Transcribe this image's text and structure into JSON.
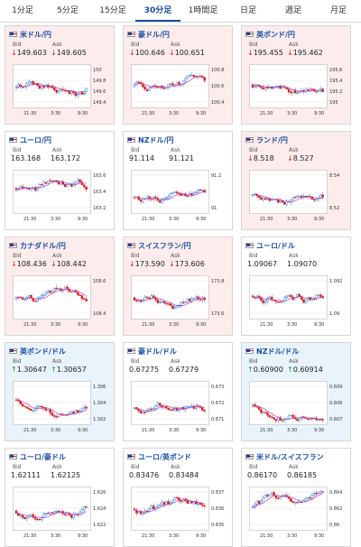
{
  "tabs": [
    "1分足",
    "5分足",
    "15分足",
    "30分足",
    "1時間足",
    "日足",
    "週足",
    "月足"
  ],
  "active_tab": 3,
  "labels": {
    "bid": "Bid",
    "ask": "Ask"
  },
  "colors": {
    "up": "#1a6fd0",
    "down": "#d02020",
    "ma": "#c040c0",
    "bid_up": "#1a9a3a",
    "bid_down": "#d02020"
  },
  "cards": [
    {
      "pair": "米ドル/円",
      "trend": "down",
      "bid": "149.603",
      "ask": "149.605",
      "arrow": "down",
      "yticks": [
        "150",
        "149.8",
        "149.6",
        "149.4"
      ],
      "xticks": [
        "21:30",
        "3:30",
        "9:30"
      ],
      "seed": 1
    },
    {
      "pair": "豪ドル/円",
      "trend": "down",
      "bid": "100.646",
      "ask": "100.651",
      "arrow": "down",
      "yticks": [
        "100.8",
        "100.6",
        "100.4"
      ],
      "xticks": [
        "21:30",
        "3:30",
        "9:30"
      ],
      "seed": 2
    },
    {
      "pair": "英ポンド/円",
      "trend": "down",
      "bid": "195.455",
      "ask": "195.462",
      "arrow": "down",
      "yticks": [
        "195.6",
        "195.4",
        "195.2",
        "195"
      ],
      "xticks": [
        "21:30",
        "3:30",
        "9:30"
      ],
      "seed": 3
    },
    {
      "pair": "ユーロ/円",
      "trend": "neutral",
      "bid": "163.168",
      "ask": "163.172",
      "arrow": "none",
      "yticks": [
        "163.6",
        "163.4",
        "163.2"
      ],
      "xticks": [
        "21:30",
        "3:30",
        "9:30"
      ],
      "seed": 4
    },
    {
      "pair": "NZドル/円",
      "trend": "neutral",
      "bid": "91.114",
      "ask": "91.121",
      "arrow": "none",
      "yticks": [
        "91.2",
        "91"
      ],
      "xticks": [
        "21:30",
        "3:30",
        "9:30"
      ],
      "seed": 5
    },
    {
      "pair": "ランド/円",
      "trend": "down",
      "bid": "8.518",
      "ask": "8.527",
      "arrow": "down",
      "yticks": [
        "8.54",
        "8.52"
      ],
      "xticks": [
        "21:30",
        "3:30",
        "9:30"
      ],
      "seed": 6
    },
    {
      "pair": "カナダドル/円",
      "trend": "down",
      "bid": "108.436",
      "ask": "108.442",
      "arrow": "down",
      "yticks": [
        "108.6",
        "108.4"
      ],
      "xticks": [
        "21:30",
        "3:30",
        "9:30"
      ],
      "seed": 7
    },
    {
      "pair": "スイスフラン/円",
      "trend": "down",
      "bid": "173.590",
      "ask": "173.606",
      "arrow": "down",
      "yticks": [
        "173.8",
        "173.6"
      ],
      "xticks": [
        "21:30",
        "3:30",
        "9:30"
      ],
      "seed": 8
    },
    {
      "pair": "ユーロ/ドル",
      "trend": "neutral",
      "bid": "1.09067",
      "ask": "1.09070",
      "arrow": "none",
      "yticks": [
        "1.092",
        "1.09"
      ],
      "xticks": [
        "21:30",
        "3:30",
        "9:30"
      ],
      "seed": 9
    },
    {
      "pair": "英ポンド/ドル",
      "trend": "up",
      "bid": "1.30647",
      "ask": "1.30657",
      "arrow": "up",
      "yticks": [
        "1.306",
        "1.304",
        "1.302"
      ],
      "xticks": [
        "21:30",
        "3:30",
        "9:30"
      ],
      "seed": 10
    },
    {
      "pair": "豪ドル/ドル",
      "trend": "neutral",
      "bid": "0.67275",
      "ask": "0.67279",
      "arrow": "none",
      "yticks": [
        "0.673",
        "0.672",
        "0.671"
      ],
      "xticks": [
        "21:30",
        "3:30",
        "9:30"
      ],
      "seed": 11
    },
    {
      "pair": "NZドル/ドル",
      "trend": "up",
      "bid": "0.60900",
      "ask": "0.60914",
      "arrow": "up",
      "yticks": [
        "0.609",
        "0.608",
        "0.607"
      ],
      "xticks": [
        "21:30",
        "3:30",
        "9:30"
      ],
      "seed": 12
    },
    {
      "pair": "ユーロ/豪ドル",
      "trend": "neutral",
      "bid": "1.62111",
      "ask": "1.62125",
      "arrow": "none",
      "yticks": [
        "1.626",
        "1.624",
        "1.622"
      ],
      "xticks": [
        "21:30",
        "3:30",
        "9:30"
      ],
      "seed": 13
    },
    {
      "pair": "ユーロ/英ポンド",
      "trend": "neutral",
      "bid": "0.83476",
      "ask": "0.83484",
      "arrow": "none",
      "yticks": [
        "0.837",
        "0.836",
        "0.835"
      ],
      "xticks": [
        "21:30",
        "3:30",
        "9:30"
      ],
      "seed": 14
    },
    {
      "pair": "米ドル/スイスフラン",
      "trend": "neutral",
      "bid": "0.86170",
      "ask": "0.86185",
      "arrow": "none",
      "yticks": [
        "0.864",
        "0.862",
        "0.86"
      ],
      "xticks": [
        "21:30",
        "3:30",
        "9:30"
      ],
      "seed": 15
    }
  ]
}
